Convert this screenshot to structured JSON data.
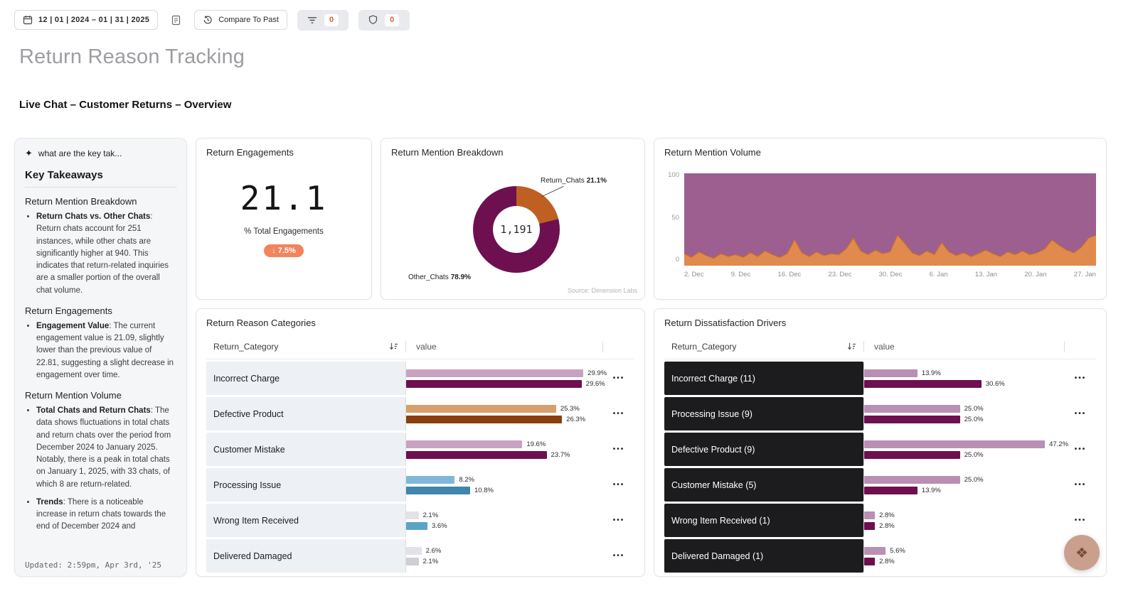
{
  "icons": {
    "menu_glyph": "•••",
    "sparkle_glyph": "✦",
    "fab_glyph": "❖"
  },
  "toolbar": {
    "date_range": "12 | 01 | 2024 – 01 | 31 | 2025",
    "compare_label": "Compare To Past",
    "filter_count": "0",
    "alerts_count": "0"
  },
  "page": {
    "title": "Return Reason Tracking",
    "section_heading": "Live Chat – Customer Returns – Overview"
  },
  "insights": {
    "prompt": "what are the key tak...",
    "heading": "Key Takeaways",
    "updated": "Updated: 2:59pm, Apr 3rd, '25",
    "sections": [
      {
        "title": "Return Mention Breakdown",
        "bullets": [
          {
            "label": "Return Chats vs. Other Chats",
            "text": ": Return chats account for 251 instances, while other chats are significantly higher at 940. This indicates that return-related inquiries are a smaller portion of the overall chat volume."
          }
        ]
      },
      {
        "title": "Return Engagements",
        "bullets": [
          {
            "label": "Engagement Value",
            "text": ": The current engagement value is 21.09, slightly lower than the previous value of 22.81, suggesting a slight decrease in engagement over time."
          }
        ]
      },
      {
        "title": "Return Mention Volume",
        "bullets": [
          {
            "label": "Total Chats and Return Chats",
            "text": ": The data shows fluctuations in total chats and return chats over the period from December 2024 to January 2025. Notably, there is a peak in total chats on January 1, 2025, with 33 chats, of which 8 are return-related."
          },
          {
            "label": "Trends",
            "text": ": There is a noticeable increase in return chats towards the end of December 2024 and"
          }
        ]
      }
    ]
  },
  "chart_data": [
    {
      "id": "return_engagements_kpi",
      "type": "kpi",
      "title": "Return Engagements",
      "value": "21.1",
      "unit": "% Total Engagements",
      "delta_pct": -7.5,
      "delta_label": "↓ 7.5%"
    },
    {
      "id": "return_mention_breakdown",
      "type": "pie",
      "title": "Return Mention Breakdown",
      "center_total": "1,191",
      "source": "Source: Dimension Labs",
      "slices": [
        {
          "label": "Return_Chats",
          "pct": 21.1,
          "pct_label": "21.1%",
          "color": "#bd6021"
        },
        {
          "label": "Other_Chats",
          "pct": 78.9,
          "pct_label": "78.9%",
          "color": "#6e0f50"
        }
      ]
    },
    {
      "id": "return_mention_volume",
      "type": "area",
      "title": "Return Mention Volume",
      "ylim": [
        0,
        100
      ],
      "y_ticks": [
        100,
        50,
        0
      ],
      "x_ticks": [
        "2. Dec",
        "9. Dec",
        "16. Dec",
        "23. Dec",
        "30. Dec",
        "6. Jan",
        "13. Jan",
        "20. Jan",
        "27. Jan"
      ],
      "series": [
        {
          "name": "Other_Chats",
          "color": "#9c5f90",
          "stroke": "#7b4370",
          "constant": 100
        },
        {
          "name": "Return_Chats",
          "color": "#e18a4e",
          "stroke": "#c2702f",
          "values": [
            13,
            9,
            15,
            11,
            8,
            13,
            10,
            12,
            9,
            14,
            10,
            16,
            12,
            9,
            13,
            28,
            14,
            10,
            15,
            11,
            13,
            12,
            18,
            30,
            16,
            12,
            17,
            13,
            15,
            33,
            24,
            14,
            11,
            16,
            12,
            25,
            15,
            11,
            14,
            10,
            13,
            17,
            13,
            10,
            15,
            12,
            16,
            12,
            14,
            18,
            28,
            22,
            17,
            14,
            20,
            30,
            33
          ]
        }
      ]
    },
    {
      "id": "return_reason_categories",
      "type": "bar",
      "title": "Return Reason Categories",
      "columns": [
        "Return_Category",
        "value"
      ],
      "scale_max": 33,
      "rows": [
        {
          "category": "Incorrect Charge",
          "bars": [
            {
              "value": 29.9,
              "label": "29.9%",
              "color": "#c7a3c1"
            },
            {
              "value": 29.6,
              "label": "29.6%",
              "color": "#6e0f50"
            }
          ]
        },
        {
          "category": "Defective Product",
          "bars": [
            {
              "value": 25.3,
              "label": "25.3%",
              "color": "#d89f6d"
            },
            {
              "value": 26.3,
              "label": "26.3%",
              "color": "#8c3e0e"
            }
          ]
        },
        {
          "category": "Customer Mistake",
          "bars": [
            {
              "value": 19.6,
              "label": "19.6%",
              "color": "#c7a3c1"
            },
            {
              "value": 23.7,
              "label": "23.7%",
              "color": "#6e0f50"
            }
          ]
        },
        {
          "category": "Processing Issue",
          "bars": [
            {
              "value": 8.2,
              "label": "8.2%",
              "color": "#7fb8d8"
            },
            {
              "value": 10.8,
              "label": "10.8%",
              "color": "#3f86ad"
            }
          ]
        },
        {
          "category": "Wrong Item Received",
          "bars": [
            {
              "value": 2.1,
              "label": "2.1%",
              "color": "#e2e2e8"
            },
            {
              "value": 3.6,
              "label": "3.6%",
              "color": "#5ba3c9"
            }
          ]
        },
        {
          "category": "Delivered Damaged",
          "bars": [
            {
              "value": 2.6,
              "label": "2.6%",
              "color": "#e2e2e8"
            },
            {
              "value": 2.1,
              "label": "2.1%",
              "color": "#cfcfd6"
            }
          ]
        }
      ]
    },
    {
      "id": "return_dissatisfaction_drivers",
      "type": "bar",
      "title": "Return Dissatisfaction Drivers",
      "columns": [
        "Return_Category",
        "value"
      ],
      "scale_max": 52,
      "rows": [
        {
          "category": "Incorrect Charge (11)",
          "bars": [
            {
              "value": 13.9,
              "label": "13.9%",
              "color": "#b98fb3"
            },
            {
              "value": 30.6,
              "label": "30.6%",
              "color": "#6e0f50"
            }
          ]
        },
        {
          "category": "Processing Issue (9)",
          "bars": [
            {
              "value": 25.0,
              "label": "25.0%",
              "color": "#b98fb3"
            },
            {
              "value": 25.0,
              "label": "25.0%",
              "color": "#6e0f50"
            }
          ]
        },
        {
          "category": "Defective Product (9)",
          "bars": [
            {
              "value": 47.2,
              "label": "47.2%",
              "color": "#b98fb3"
            },
            {
              "value": 25.0,
              "label": "25.0%",
              "color": "#6e0f50"
            }
          ]
        },
        {
          "category": "Customer Mistake (5)",
          "bars": [
            {
              "value": 25.0,
              "label": "25.0%",
              "color": "#b98fb3"
            },
            {
              "value": 13.9,
              "label": "13.9%",
              "color": "#6e0f50"
            }
          ]
        },
        {
          "category": "Wrong Item Received (1)",
          "bars": [
            {
              "value": 2.8,
              "label": "2.8%",
              "color": "#b98fb3"
            },
            {
              "value": 2.8,
              "label": "2.8%",
              "color": "#6e0f50"
            }
          ]
        },
        {
          "category": "Delivered Damaged (1)",
          "bars": [
            {
              "value": 5.6,
              "label": "5.6%",
              "color": "#b98fb3"
            },
            {
              "value": 2.8,
              "label": "2.8%",
              "color": "#6e0f50"
            }
          ]
        }
      ]
    }
  ]
}
